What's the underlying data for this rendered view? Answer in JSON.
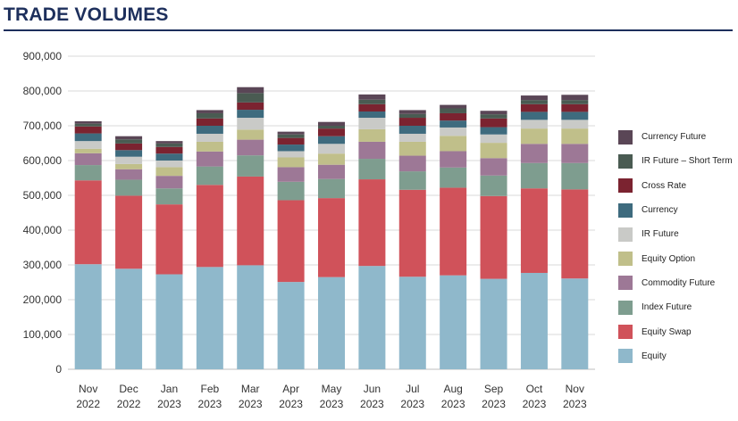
{
  "chart_data": {
    "type": "bar",
    "stacked": true,
    "title": "TRADE VOLUMES",
    "xlabel": "",
    "ylabel": "",
    "ylim": [
      0,
      900000
    ],
    "yticks": [
      0,
      100000,
      200000,
      300000,
      400000,
      500000,
      600000,
      700000,
      800000,
      900000
    ],
    "ytick_labels": [
      "0",
      "100,000",
      "200,000",
      "300,000",
      "400,000",
      "500,000",
      "600,000",
      "700,000",
      "800,000",
      "900,000"
    ],
    "grid": true,
    "legend_position": "right",
    "categories": [
      [
        "Nov",
        "2022"
      ],
      [
        "Dec",
        "2022"
      ],
      [
        "Jan",
        "2023"
      ],
      [
        "Feb",
        "2023"
      ],
      [
        "Mar",
        "2023"
      ],
      [
        "Apr",
        "2023"
      ],
      [
        "May",
        "2023"
      ],
      [
        "Jun",
        "2023"
      ],
      [
        "Jul",
        "2023"
      ],
      [
        "Aug",
        "2023"
      ],
      [
        "Sep",
        "2023"
      ],
      [
        "Oct",
        "2023"
      ],
      [
        "Nov",
        "2023"
      ]
    ],
    "series": [
      {
        "name": "Equity",
        "color": "#8fb8cb",
        "values": [
          302000,
          289000,
          273000,
          294000,
          299000,
          251000,
          265000,
          297000,
          266000,
          270000,
          260000,
          277000,
          261000
        ]
      },
      {
        "name": "Equity Swap",
        "color": "#d0525a",
        "values": [
          241000,
          210000,
          201000,
          236000,
          255000,
          235000,
          227000,
          249000,
          250000,
          252000,
          238000,
          243000,
          256000
        ]
      },
      {
        "name": "Index Future",
        "color": "#7e9d8f",
        "values": [
          44000,
          46000,
          46000,
          53000,
          61000,
          53000,
          55000,
          59000,
          53000,
          58000,
          59000,
          73000,
          76000
        ]
      },
      {
        "name": "Commodity Future",
        "color": "#9d7896",
        "values": [
          34000,
          30000,
          36000,
          43000,
          45000,
          42000,
          41000,
          49000,
          45000,
          47000,
          50000,
          55000,
          55000
        ]
      },
      {
        "name": "Equity Option",
        "color": "#c0bf8a",
        "values": [
          13000,
          15000,
          25000,
          28000,
          29000,
          28000,
          32000,
          36000,
          40000,
          44000,
          44000,
          44000,
          44000
        ]
      },
      {
        "name": "IR Future",
        "color": "#c9cac7",
        "values": [
          22000,
          21000,
          19000,
          23000,
          34000,
          18000,
          28000,
          33000,
          23000,
          24000,
          24000,
          25000,
          25000
        ]
      },
      {
        "name": "Currency",
        "color": "#3e6b7e",
        "values": [
          22000,
          19000,
          20000,
          23000,
          23000,
          19000,
          22000,
          18000,
          23000,
          20000,
          21000,
          23000,
          23000
        ]
      },
      {
        "name": "Cross Rate",
        "color": "#7b2330",
        "values": [
          20000,
          19000,
          19000,
          21000,
          21000,
          19000,
          22000,
          21000,
          23000,
          21000,
          25000,
          22000,
          22000
        ]
      },
      {
        "name": "IR Future – Short Term",
        "color": "#4a5b52",
        "values": [
          8000,
          12000,
          10000,
          15000,
          27000,
          10000,
          8000,
          13000,
          11000,
          14000,
          12000,
          12000,
          12000
        ]
      },
      {
        "name": "Currency Future",
        "color": "#5a4656",
        "values": [
          7000,
          9000,
          7000,
          9000,
          17000,
          8000,
          11000,
          15000,
          11000,
          10000,
          10000,
          13000,
          15000
        ]
      }
    ]
  }
}
